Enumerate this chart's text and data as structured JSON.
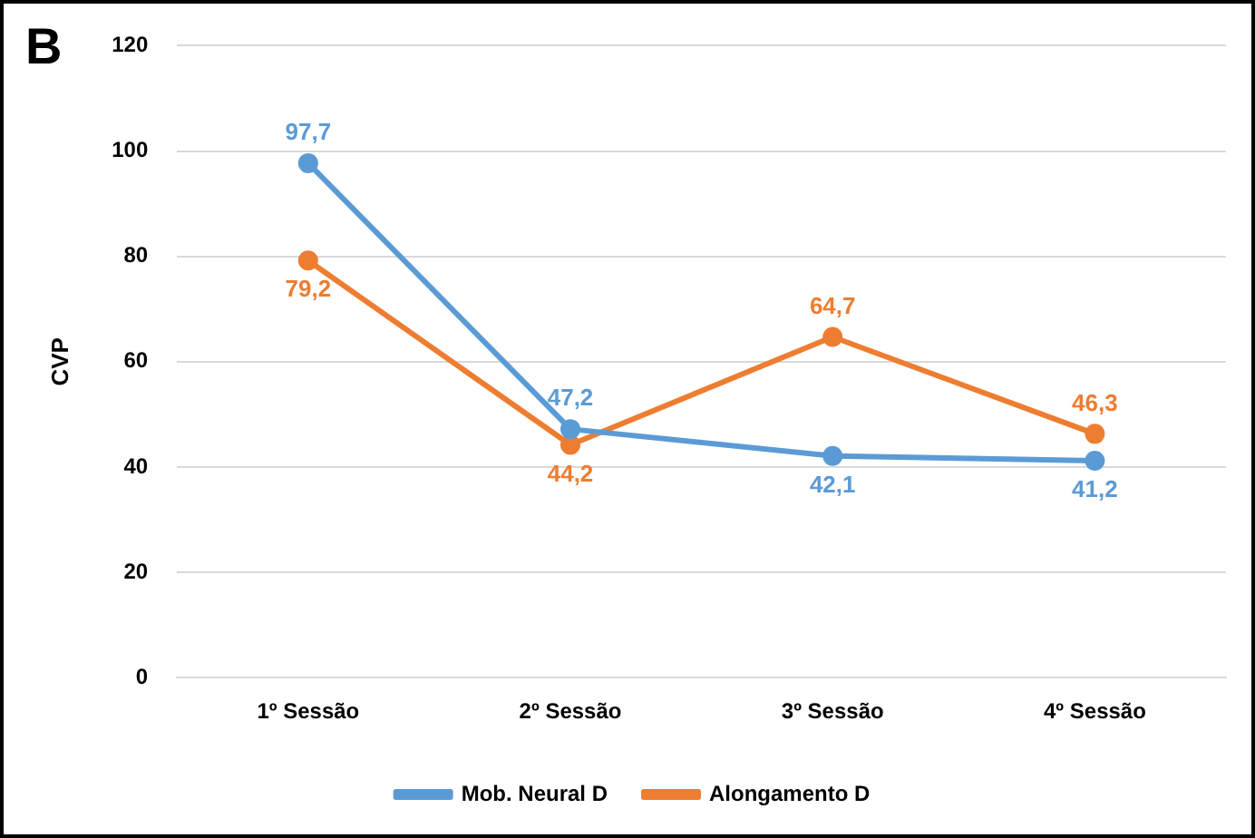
{
  "chart_data": {
    "type": "line",
    "ylabel": "CVP",
    "annotations": [
      "B"
    ],
    "categories": [
      "1º Sessão",
      "2º Sessão",
      "3º Sessão",
      "4º Sessão"
    ],
    "series": [
      {
        "name": "Mob. Neural D",
        "color": "#5b9bd5",
        "values": [
          97.7,
          47.2,
          42.1,
          41.2
        ],
        "value_labels": [
          "97,7",
          "47,2",
          "42,1",
          "41,2"
        ]
      },
      {
        "name": "Alongamento D",
        "color": "#ed7d31",
        "values": [
          79.2,
          44.2,
          64.7,
          46.3
        ],
        "value_labels": [
          "79,2",
          "44,2",
          "64,7",
          "46,3"
        ]
      }
    ],
    "ylim": [
      0,
      120
    ],
    "yticks": [
      0,
      20,
      40,
      60,
      80,
      100,
      120
    ],
    "grid": "y",
    "legend": "bottom",
    "marker": "circle",
    "line_style": "solid"
  }
}
